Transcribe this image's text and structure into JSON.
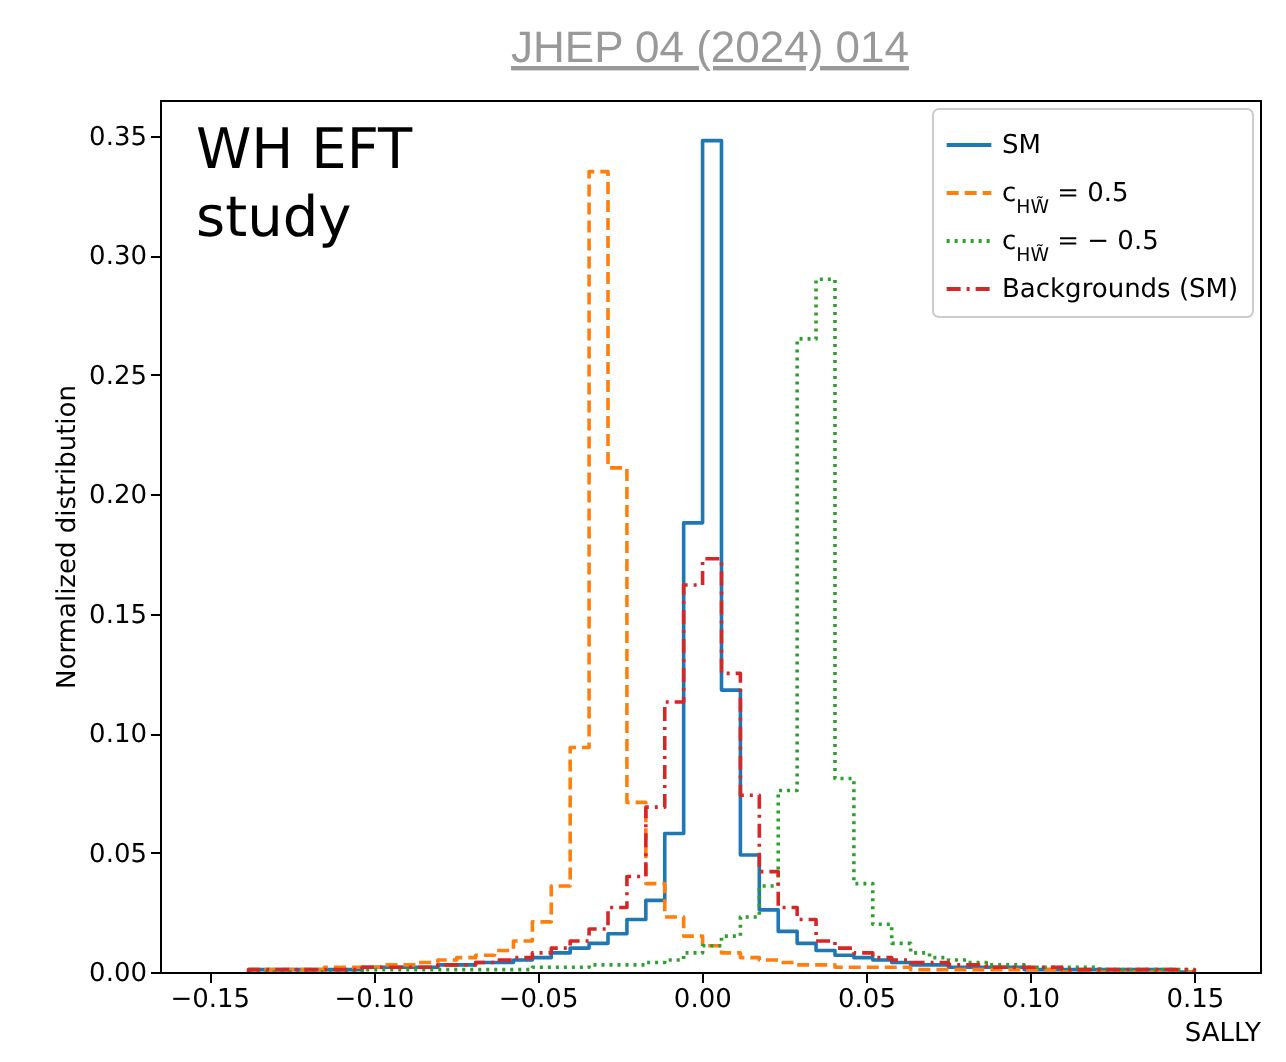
{
  "chart_data": {
    "type": "histogram",
    "title": "JHEP 04 (2024) 014",
    "xlabel": "SALLY",
    "ylabel": "Normalized distribution",
    "annotations": [
      "WH EFT\nstudy"
    ],
    "bins": [
      -0.138,
      -0.13224,
      -0.12648,
      -0.12072,
      -0.11496,
      -0.1092,
      -0.10344,
      -0.09768,
      -0.09192,
      -0.08616,
      -0.0804,
      -0.07464,
      -0.06888,
      -0.06312,
      -0.05736,
      -0.0516,
      -0.04584,
      -0.04008,
      -0.03432,
      -0.02856,
      -0.0228,
      -0.01704,
      -0.01128,
      -0.00552,
      0.00024,
      0.006,
      0.01176,
      0.01752,
      0.02328,
      0.02904,
      0.0348,
      0.04056,
      0.04632,
      0.05208,
      0.05784,
      0.0636,
      0.06936,
      0.07512,
      0.08088,
      0.08664,
      0.0924,
      0.09816,
      0.10392,
      0.10968,
      0.11544,
      0.1212,
      0.12696,
      0.13272,
      0.13848,
      0.14424,
      0.15
    ],
    "series": [
      {
        "name": "SM",
        "color": "#1f77b4",
        "line_style": "solid",
        "values": [
          0.001,
          0.001,
          0.001,
          0.001,
          0.001,
          0.001,
          0.002,
          0.002,
          0.002,
          0.002,
          0.003,
          0.003,
          0.004,
          0.004,
          0.005,
          0.006,
          0.008,
          0.01,
          0.012,
          0.016,
          0.022,
          0.03,
          0.058,
          0.188,
          0.348,
          0.118,
          0.049,
          0.026,
          0.017,
          0.012,
          0.009,
          0.007,
          0.006,
          0.005,
          0.004,
          0.003,
          0.003,
          0.002,
          0.002,
          0.002,
          0.002,
          0.001,
          0.001,
          0.001,
          0.001,
          0.001,
          0.001,
          0.001,
          0.001,
          0
        ]
      },
      {
        "name": "c$_{HW̃}$ = 0.5",
        "color": "#ff7f0e",
        "line_style": "dashed",
        "values": [
          0.001,
          0.001,
          0.001,
          0.001,
          0.002,
          0.002,
          0.002,
          0.003,
          0.003,
          0.004,
          0.005,
          0.006,
          0.007,
          0.009,
          0.013,
          0.021,
          0.036,
          0.094,
          0.335,
          0.211,
          0.071,
          0.037,
          0.023,
          0.015,
          0.011,
          0.008,
          0.006,
          0.005,
          0.004,
          0.003,
          0.003,
          0.002,
          0.002,
          0.002,
          0.002,
          0.001,
          0.001,
          0.001,
          0.001,
          0.001,
          0.001,
          0.001,
          0.001,
          0,
          0,
          0,
          0,
          0,
          0,
          0
        ]
      },
      {
        "name": "c$_{HW̃}$ = − 0.5",
        "color": "#2ca02c",
        "line_style": "dotted",
        "values": [
          0,
          0,
          0,
          0,
          0,
          0,
          0.001,
          0.001,
          0.001,
          0.001,
          0.001,
          0.001,
          0.001,
          0.001,
          0.001,
          0.002,
          0.002,
          0.002,
          0.003,
          0.003,
          0.003,
          0.004,
          0.005,
          0.008,
          0.011,
          0.015,
          0.023,
          0.036,
          0.076,
          0.265,
          0.29,
          0.081,
          0.037,
          0.02,
          0.012,
          0.008,
          0.006,
          0.005,
          0.004,
          0.003,
          0.003,
          0.002,
          0.002,
          0.002,
          0.002,
          0.001,
          0.001,
          0.001,
          0.001,
          0.001
        ]
      },
      {
        "name": "Backgrounds (SM)",
        "color": "#d62728",
        "line_style": "dashdot",
        "values": [
          0.001,
          0.001,
          0.001,
          0.001,
          0.001,
          0.001,
          0.002,
          0.002,
          0.002,
          0.002,
          0.003,
          0.003,
          0.004,
          0.005,
          0.006,
          0.008,
          0.01,
          0.013,
          0.018,
          0.027,
          0.04,
          0.069,
          0.113,
          0.162,
          0.173,
          0.125,
          0.074,
          0.042,
          0.027,
          0.022,
          0.013,
          0.01,
          0.008,
          0.006,
          0.005,
          0.004,
          0.004,
          0.003,
          0.003,
          0.002,
          0.002,
          0.002,
          0.002,
          0.001,
          0.001,
          0.001,
          0.001,
          0.001,
          0.001,
          0.001
        ]
      }
    ],
    "xlim": [
      -0.165,
      0.17
    ],
    "ylim": [
      0,
      0.365
    ],
    "xticks": [
      {
        "value": -0.15,
        "label": "−0.15"
      },
      {
        "value": -0.1,
        "label": "−0.10"
      },
      {
        "value": -0.05,
        "label": "−0.05"
      },
      {
        "value": 0,
        "label": "0.00"
      },
      {
        "value": 0.05,
        "label": "0.05"
      },
      {
        "value": 0.1,
        "label": "0.10"
      },
      {
        "value": 0.15,
        "label": "0.15"
      }
    ],
    "yticks": [
      {
        "value": 0,
        "label": "0.00"
      },
      {
        "value": 0.05,
        "label": "0.05"
      },
      {
        "value": 0.1,
        "label": "0.10"
      },
      {
        "value": 0.15,
        "label": "0.15"
      },
      {
        "value": 0.2,
        "label": "0.20"
      },
      {
        "value": 0.25,
        "label": "0.25"
      },
      {
        "value": 0.3,
        "label": "0.30"
      },
      {
        "value": 0.35,
        "label": "0.35"
      }
    ],
    "grid": false,
    "legend": "top right"
  }
}
